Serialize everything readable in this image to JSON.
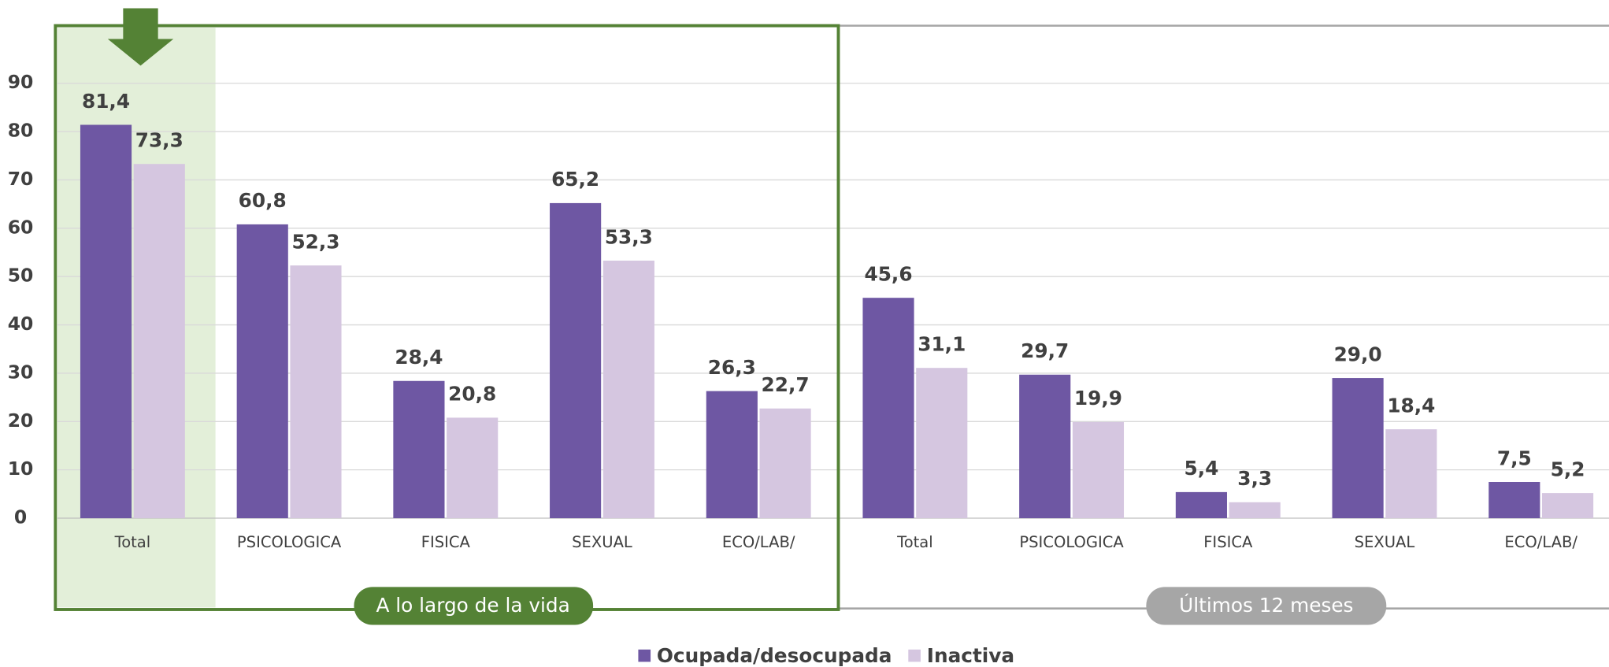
{
  "chart_data": {
    "type": "bar",
    "categories": [
      "Total",
      "PSICOLOGICA",
      "FISICA",
      "SEXUAL",
      "ECO/LAB/",
      "Total",
      "PSICOLOGICA",
      "FISICA",
      "SEXUAL",
      "ECO/LAB/"
    ],
    "group_labels": [
      "A lo largo de la vida",
      "Últimos 12 meses"
    ],
    "series": [
      {
        "name": "Ocupada/desocupada",
        "color": "#6e57a3",
        "values": [
          81.4,
          60.8,
          28.4,
          65.2,
          26.3,
          45.6,
          29.7,
          5.4,
          29.0,
          7.5
        ],
        "value_labels": [
          "81,4",
          "60,8",
          "28,4",
          "65,2",
          "26,3",
          "45,6",
          "29,7",
          "5,4",
          "29,0",
          "7,5"
        ]
      },
      {
        "name": "Inactiva",
        "color": "#d5c6e0",
        "values": [
          73.3,
          52.3,
          20.8,
          53.3,
          22.7,
          31.1,
          19.9,
          3.3,
          18.4,
          5.2
        ],
        "value_labels": [
          "73,3",
          "52,3",
          "20,8",
          "53,3",
          "22,7",
          "31,1",
          "19,9",
          "3,3",
          "18,4",
          "5,2"
        ]
      }
    ],
    "ylim": [
      0,
      100
    ],
    "yticks": [
      0,
      10,
      20,
      30,
      40,
      50,
      60,
      70,
      80,
      90
    ],
    "grid": true,
    "legend": "bottom"
  }
}
